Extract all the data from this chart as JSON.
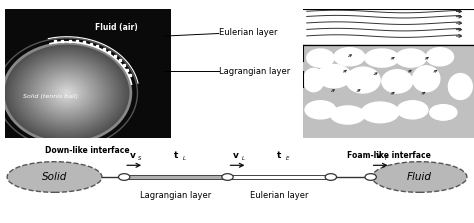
{
  "bg_color": "#ffffff",
  "photo_label": "Down-like interface",
  "foam_label": "Foam-like interface",
  "eulerian_label": "Eulerian layer",
  "lagrangian_label": "Lagrangian layer",
  "solid_label": "Solid",
  "fluid_label": "Fluid",
  "lagrangian_layer_label": "Lagrangian layer",
  "eulerian_layer_label": "Eulerian layer",
  "ellipse_color": "#b8b8b8",
  "ellipse_edge": "#555555",
  "bar_color": "#b0b0b0",
  "bar_edge": "#444444",
  "node_color": "#ffffff",
  "node_edge": "#333333",
  "arrow_color": "#111111",
  "line_color": "#333333",
  "foam_bg": "#c0c0c0",
  "foam_bubble_color": "#ffffff",
  "flow_line_color": "#333333"
}
